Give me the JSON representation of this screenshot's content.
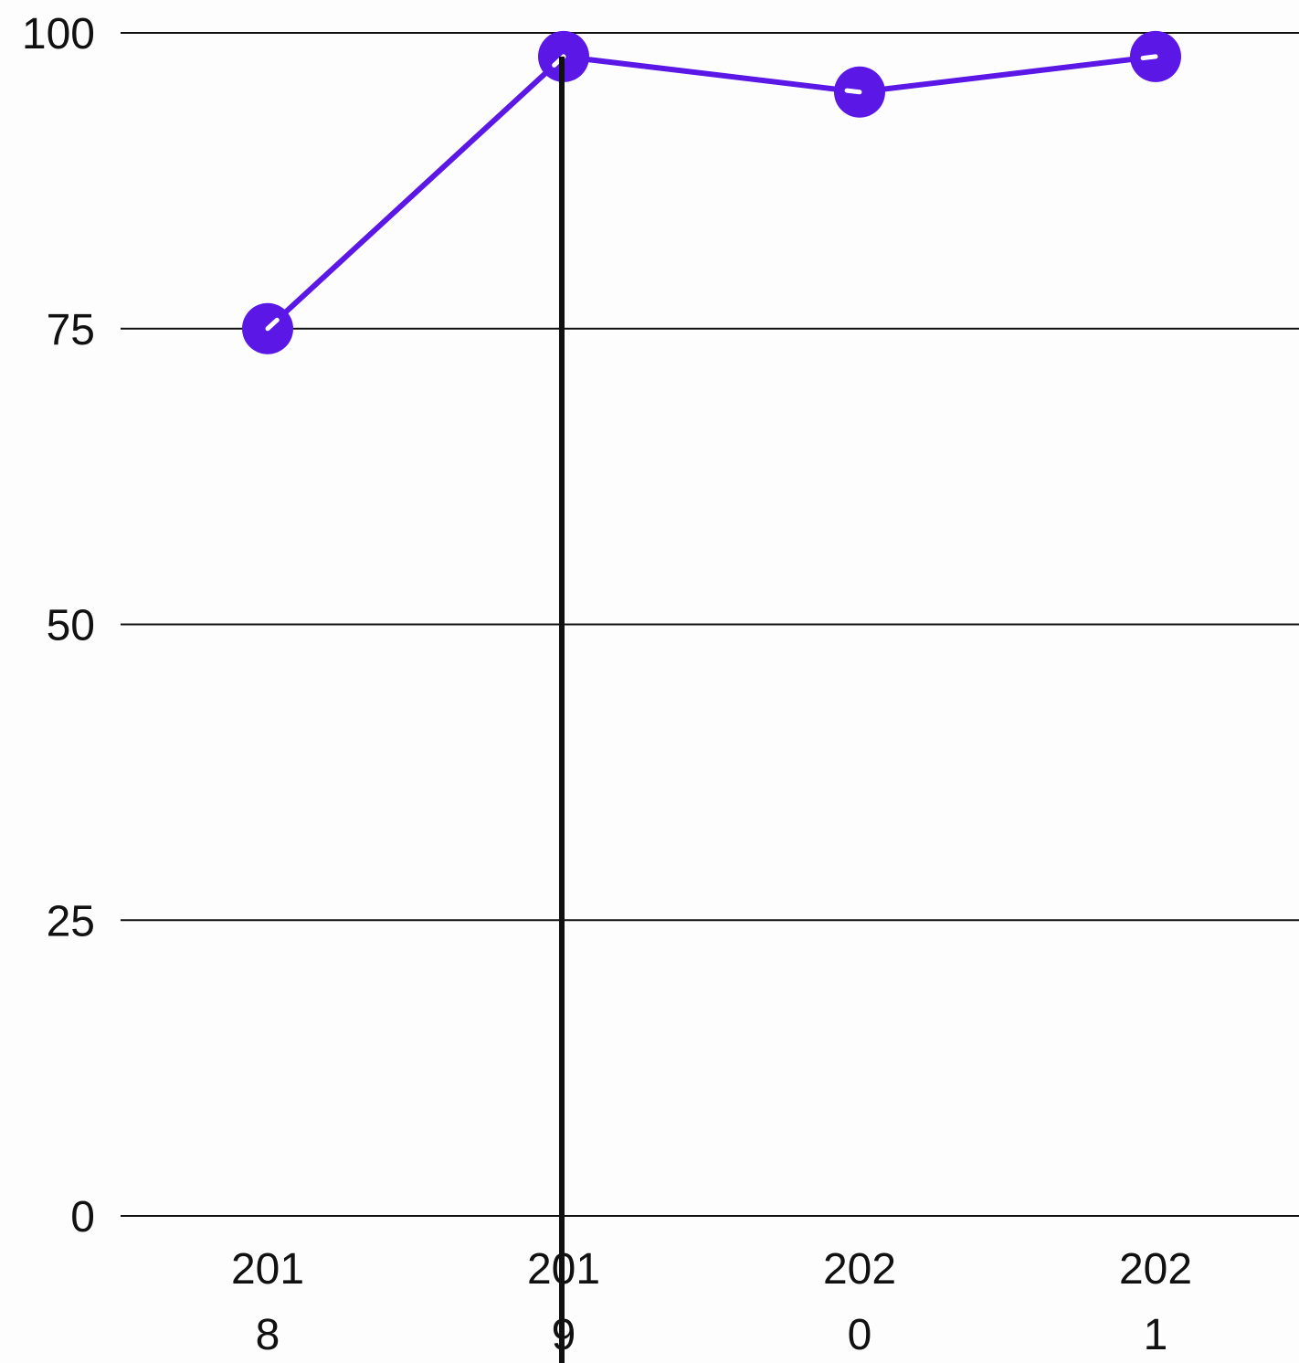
{
  "chart_data": {
    "type": "line",
    "title": "",
    "xlabel": "",
    "ylabel": "",
    "categories": [
      "2018",
      "2019",
      "2020",
      "2021"
    ],
    "category_label_lines": [
      [
        "201",
        "8"
      ],
      [
        "201",
        "9"
      ],
      [
        "202",
        "0"
      ],
      [
        "202",
        "1"
      ]
    ],
    "series": [
      {
        "values": [
          75,
          98,
          95,
          98
        ],
        "color": "#5b17e6"
      }
    ],
    "ylim": [
      0,
      100
    ],
    "yticks": [
      0,
      25,
      50,
      75,
      100
    ],
    "grid": true,
    "legend": "none",
    "highlighted_category": "2019",
    "cursor_color": "#111111"
  }
}
